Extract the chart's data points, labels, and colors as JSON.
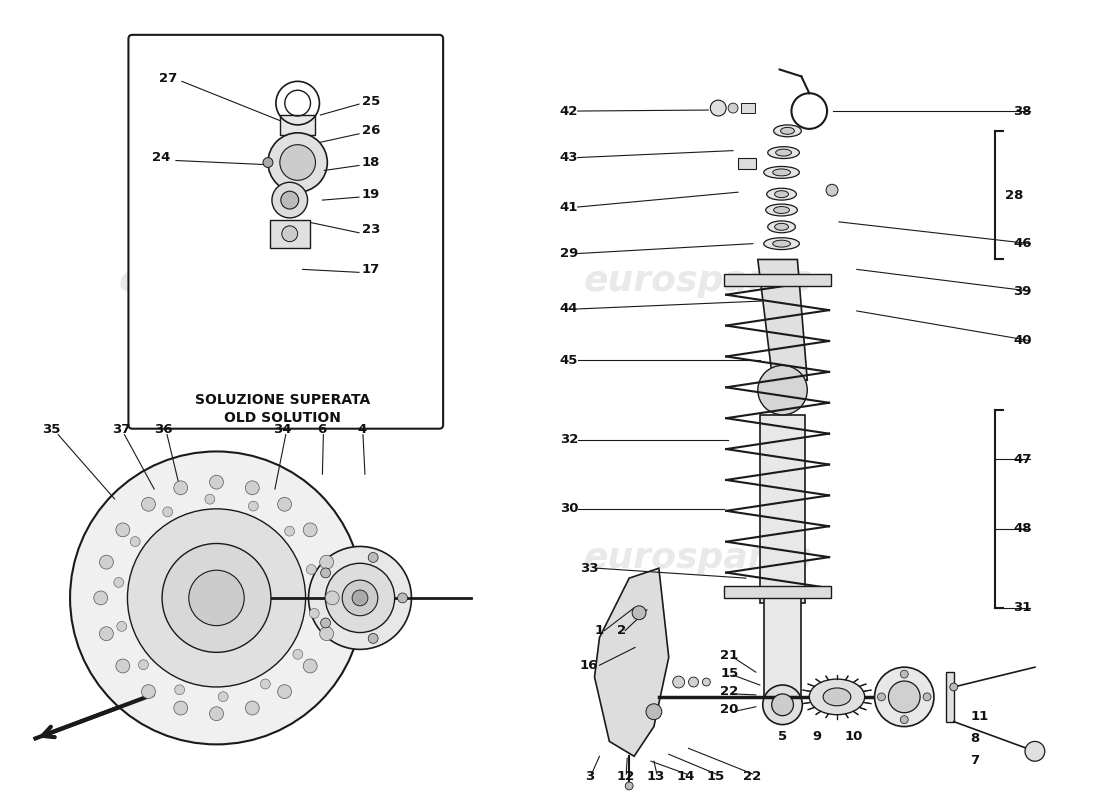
{
  "bg_color": "#ffffff",
  "line_color": "#1a1a1a",
  "watermark_text": "eurospares",
  "watermark_color": "#c8c8c8",
  "watermark_alpha": 0.4,
  "box_label_line1": "SOLUZIONE SUPERATA",
  "box_label_line2": "OLD SOLUTION",
  "label_fontsize": 8.5,
  "label_bold_fontsize": 9.5
}
